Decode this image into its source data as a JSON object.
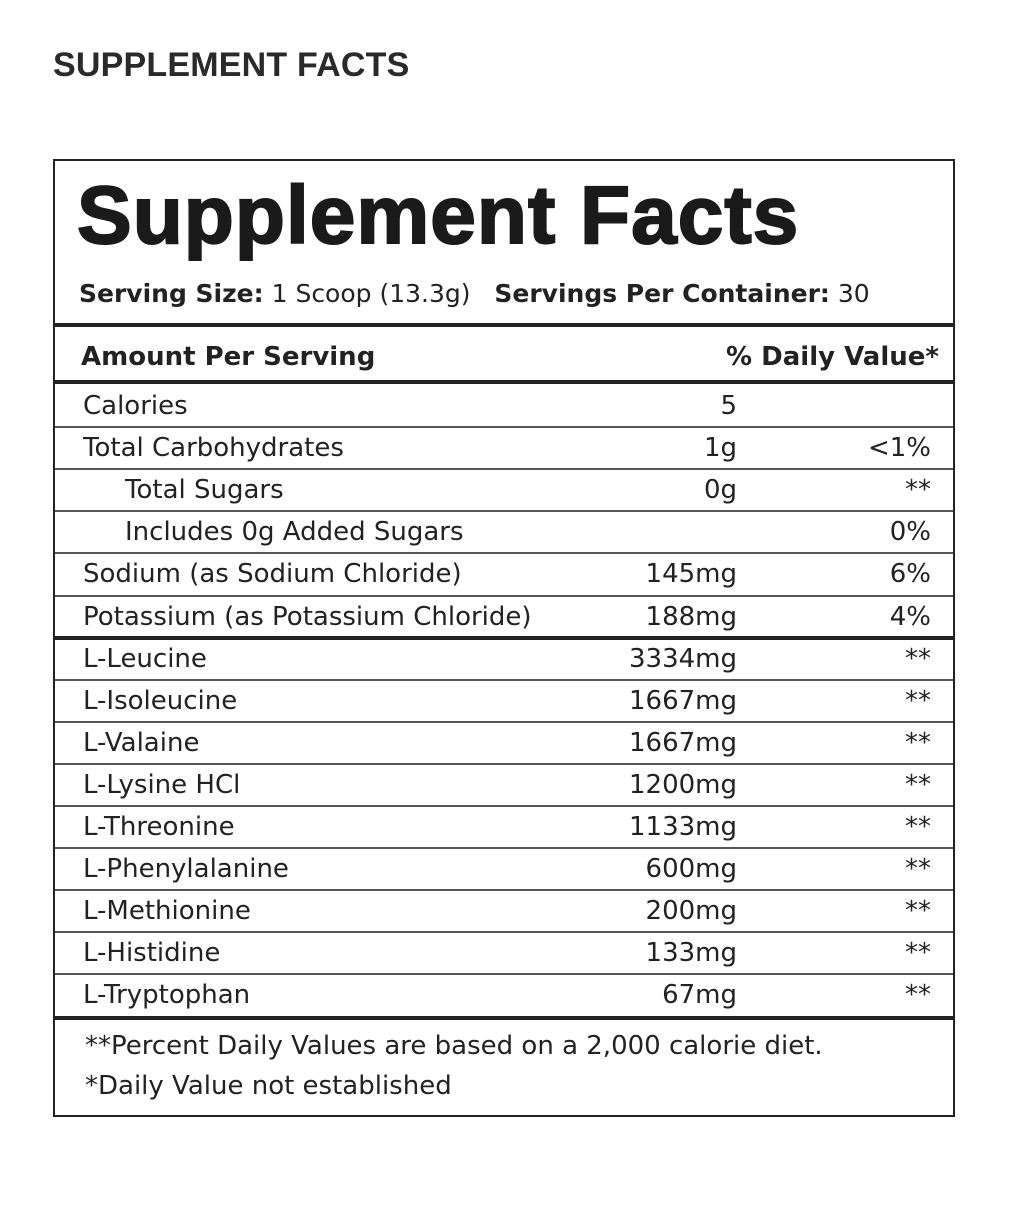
{
  "header": {
    "title": "SUPPLEMENT FACTS"
  },
  "label": {
    "title": "Supplement Facts",
    "serving_size_label": "Serving Size:",
    "serving_size": "1 Scoop (13.3g)",
    "servings_label": "Servings Per Container:",
    "servings": "30",
    "columns": [
      "Amount Per Serving",
      "% Daily Value*"
    ],
    "rows": [
      {
        "name": "Calories",
        "amount": "5"
      },
      {
        "name": "Total Carbohydrates",
        "amount": "1g",
        "dv": "<1%"
      },
      {
        "name": "Total Sugars",
        "amount": "0g",
        "dv": "**",
        "indent": true
      },
      {
        "name": "Includes 0g Added Sugars",
        "dv": "0%",
        "indent": true
      },
      {
        "name": "Sodium (as Sodium Chloride)",
        "amount": "145mg",
        "dv": "6%"
      },
      {
        "name": "Potassium (as Potassium Chloride)",
        "amount": "188mg",
        "dv": "4%"
      },
      {
        "name": "L-Leucine",
        "amount": "3334mg",
        "dv": "**"
      },
      {
        "name": "L-Isoleucine",
        "amount": "1667mg",
        "dv": "**"
      },
      {
        "name": "L-Valaine",
        "amount": "1667mg",
        "dv": "**"
      },
      {
        "name": "L-Lysine HCl",
        "amount": "1200mg",
        "dv": "**"
      },
      {
        "name": "L-Threonine",
        "amount": "1133mg",
        "dv": "**"
      },
      {
        "name": "L-Phenylalanine",
        "amount": "600mg",
        "dv": "**"
      },
      {
        "name": "L-Methionine",
        "amount": "200mg",
        "dv": "**"
      },
      {
        "name": "L-Histidine",
        "amount": "133mg",
        "dv": "**"
      },
      {
        "name": "L-Tryptophan",
        "amount": "67mg",
        "dv": "**"
      }
    ],
    "footnotes": [
      "**Percent Daily Values are based on a 2,000 calorie diet.",
      "*Daily Value not established"
    ]
  }
}
